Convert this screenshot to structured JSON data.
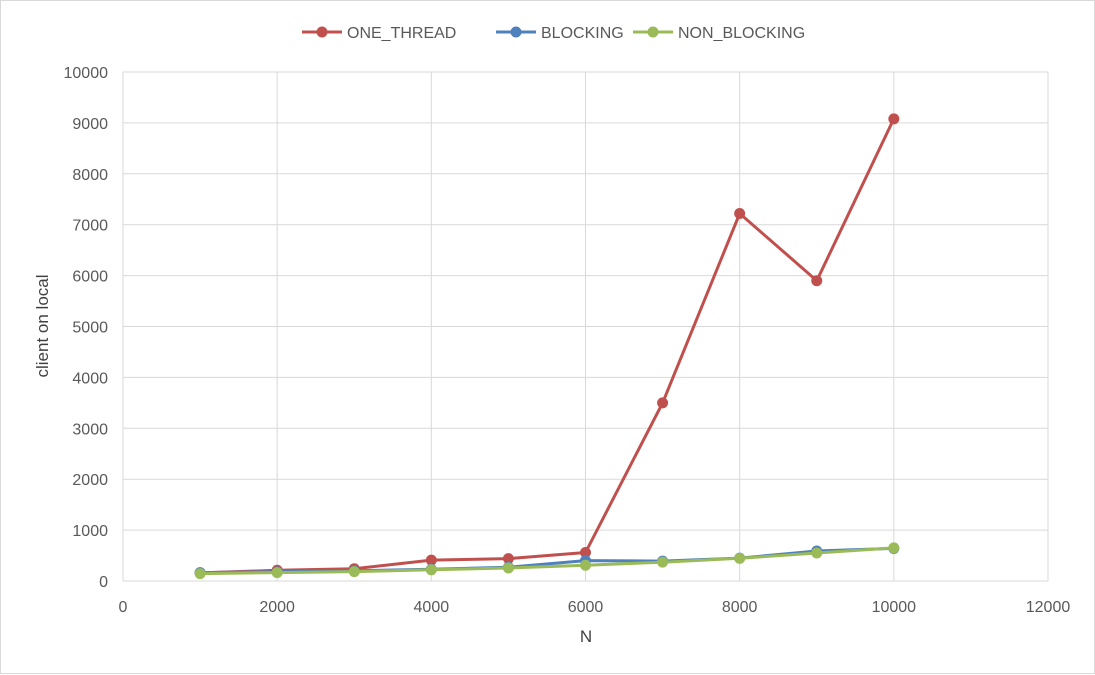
{
  "chart_data": {
    "type": "line",
    "title": "",
    "xlabel": "N",
    "ylabel": "client on local",
    "xlim": [
      0,
      12000
    ],
    "ylim": [
      0,
      10000
    ],
    "xticks": [
      "0",
      "2000",
      "4000",
      "6000",
      "8000",
      "10000",
      "12000"
    ],
    "yticks": [
      "0",
      "1000",
      "2000",
      "3000",
      "4000",
      "5000",
      "6000",
      "7000",
      "8000",
      "9000",
      "10000"
    ],
    "grid": true,
    "legend_position": "top",
    "x": [
      1000,
      2000,
      3000,
      4000,
      5000,
      6000,
      7000,
      8000,
      9000,
      10000
    ],
    "series": [
      {
        "name": "ONE_THREAD",
        "color": "#c0504d",
        "values": [
          160,
          210,
          240,
          410,
          440,
          560,
          3500,
          7220,
          5900,
          9080
        ]
      },
      {
        "name": "BLOCKING",
        "color": "#4f81bd",
        "values": [
          165,
          180,
          200,
          230,
          270,
          400,
          390,
          450,
          590,
          640
        ]
      },
      {
        "name": "NON_BLOCKING",
        "color": "#9bbb59",
        "values": [
          145,
          165,
          185,
          220,
          255,
          310,
          370,
          445,
          550,
          650
        ]
      }
    ]
  }
}
